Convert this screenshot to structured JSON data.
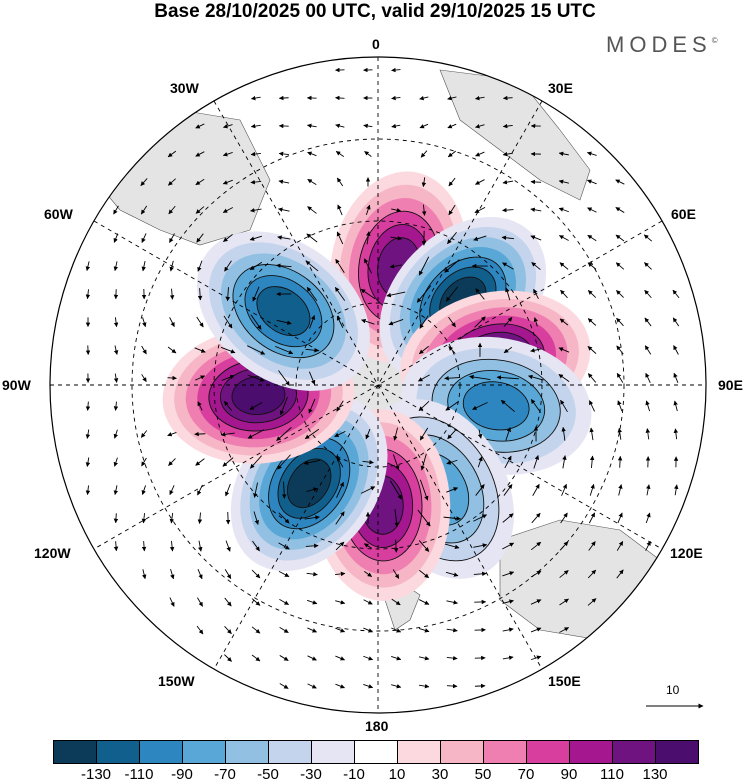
{
  "title": "Base 28/10/2025 00 UTC, valid 29/10/2025 15 UTC",
  "logo": {
    "text": "MODES",
    "mark": "©"
  },
  "longitude_labels": {
    "l0": "0",
    "l30e": "30E",
    "l60e": "60E",
    "l90e": "90E",
    "l120e": "120E",
    "l150e": "150E",
    "l180": "180",
    "l150w": "150W",
    "l120w": "120W",
    "l90w": "90W",
    "l60w": "60W",
    "l30w": "30W"
  },
  "vector_scale": {
    "value": "10"
  },
  "colorbar": {
    "colors": [
      "#0c3b5a",
      "#115f8c",
      "#2e86c1",
      "#58a7d7",
      "#91c0e2",
      "#c3d4ec",
      "#e6e5f3",
      "#ffffff",
      "#fbd9df",
      "#f6b6c6",
      "#ef7fb0",
      "#d73e9e",
      "#a4178f",
      "#6e137f",
      "#4b0d6e"
    ],
    "labels": [
      "-130",
      "-110",
      "-90",
      "-70",
      "-50",
      "-30",
      "-10",
      "10",
      "30",
      "50",
      "70",
      "90",
      "110",
      "130"
    ]
  },
  "anomaly_centers": [
    {
      "name": "positive-north",
      "sign": 1,
      "lon": 10,
      "value": 110
    },
    {
      "name": "negative-northeast",
      "sign": -1,
      "lon": 45,
      "value": -130
    },
    {
      "name": "positive-east",
      "sign": 1,
      "lon": 78,
      "value": 130
    },
    {
      "name": "negative-east",
      "sign": -1,
      "lon": 100,
      "value": -90
    },
    {
      "name": "negative-southeast",
      "sign": -1,
      "lon": 150,
      "value": -70
    },
    {
      "name": "positive-south",
      "sign": 1,
      "lon": 178,
      "value": 120
    },
    {
      "name": "negative-southwest",
      "sign": -1,
      "lon": 215,
      "value": -130
    },
    {
      "name": "positive-west",
      "sign": 1,
      "lon": 265,
      "value": 130
    },
    {
      "name": "negative-northwest",
      "sign": -1,
      "lon": 308,
      "value": -110
    }
  ]
}
